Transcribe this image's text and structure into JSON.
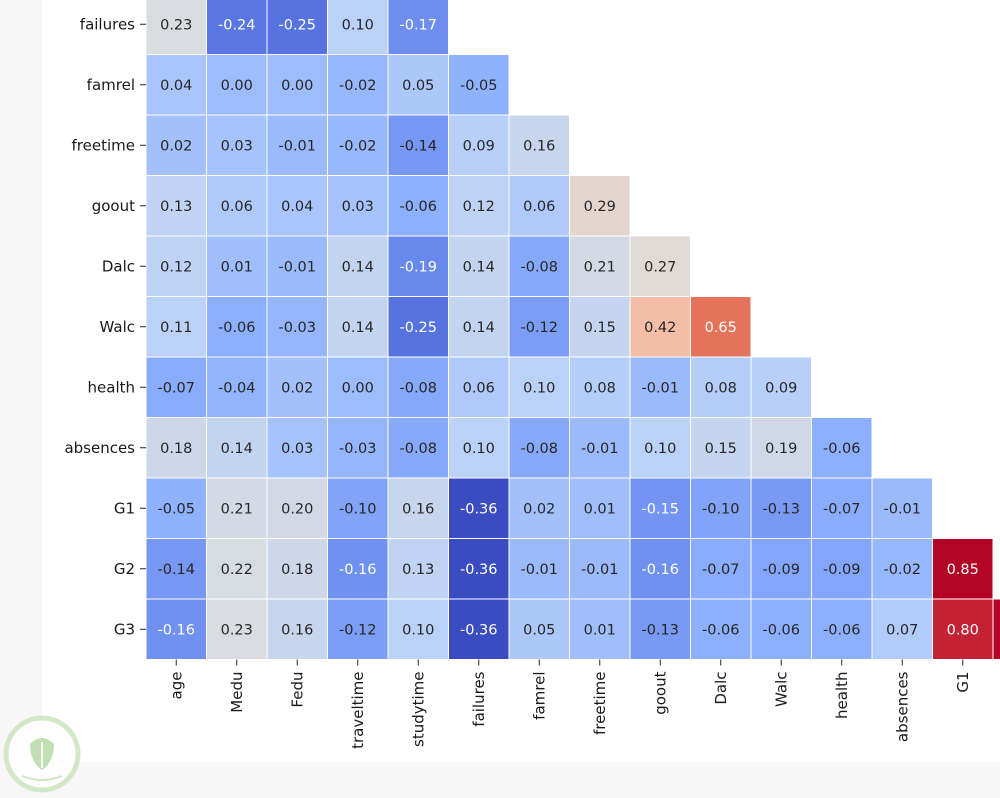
{
  "chart_data": {
    "type": "heatmap",
    "title": "",
    "xlabel": "",
    "ylabel": "",
    "x_labels": [
      "age",
      "Medu",
      "Fedu",
      "traveltime",
      "studytime",
      "failures",
      "famrel",
      "freetime",
      "goout",
      "Dalc",
      "Walc",
      "health",
      "absences",
      "G1"
    ],
    "y_labels": [
      "failures",
      "famrel",
      "freetime",
      "goout",
      "Dalc",
      "Walc",
      "health",
      "absences",
      "G1",
      "G2",
      "G3"
    ],
    "values": [
      [
        0.23,
        -0.24,
        -0.25,
        0.1,
        -0.17,
        null,
        null,
        null,
        null,
        null,
        null,
        null,
        null,
        null
      ],
      [
        0.04,
        0.0,
        0.0,
        -0.02,
        0.05,
        -0.05,
        null,
        null,
        null,
        null,
        null,
        null,
        null,
        null
      ],
      [
        0.02,
        0.03,
        -0.01,
        -0.02,
        -0.14,
        0.09,
        0.16,
        null,
        null,
        null,
        null,
        null,
        null,
        null
      ],
      [
        0.13,
        0.06,
        0.04,
        0.03,
        -0.06,
        0.12,
        0.06,
        0.29,
        null,
        null,
        null,
        null,
        null,
        null
      ],
      [
        0.12,
        0.01,
        -0.01,
        0.14,
        -0.19,
        0.14,
        -0.08,
        0.21,
        0.27,
        null,
        null,
        null,
        null,
        null
      ],
      [
        0.11,
        -0.06,
        -0.03,
        0.14,
        -0.25,
        0.14,
        -0.12,
        0.15,
        0.42,
        0.65,
        null,
        null,
        null,
        null
      ],
      [
        -0.07,
        -0.04,
        0.02,
        0.0,
        -0.08,
        0.06,
        0.1,
        0.08,
        -0.01,
        0.08,
        0.09,
        null,
        null,
        null
      ],
      [
        0.18,
        0.14,
        0.03,
        -0.03,
        -0.08,
        0.1,
        -0.08,
        -0.01,
        0.1,
        0.15,
        0.19,
        -0.06,
        null,
        null
      ],
      [
        -0.05,
        0.21,
        0.2,
        -0.1,
        0.16,
        -0.36,
        0.02,
        0.01,
        -0.15,
        -0.1,
        -0.13,
        -0.07,
        -0.01,
        null
      ],
      [
        -0.14,
        0.22,
        0.18,
        -0.16,
        0.13,
        -0.36,
        -0.01,
        -0.01,
        -0.16,
        -0.07,
        -0.09,
        -0.09,
        -0.02,
        0.85
      ],
      [
        -0.16,
        0.23,
        0.16,
        -0.12,
        0.1,
        -0.36,
        0.05,
        0.01,
        -0.13,
        -0.06,
        -0.06,
        -0.06,
        0.07,
        0.8
      ]
    ],
    "colormap": "coolwarm",
    "vmin": -0.36,
    "vmax": 0.85,
    "annotations": true,
    "value_format": "0.00",
    "cell_border_color": "#ffffff",
    "grid": false,
    "legend": "none",
    "clipped_right_edge": true
  },
  "watermark": {
    "icon": "leaf-shield-icon",
    "ring_color": "#cfe6c4",
    "leaf_color": "#b9dcaa"
  }
}
